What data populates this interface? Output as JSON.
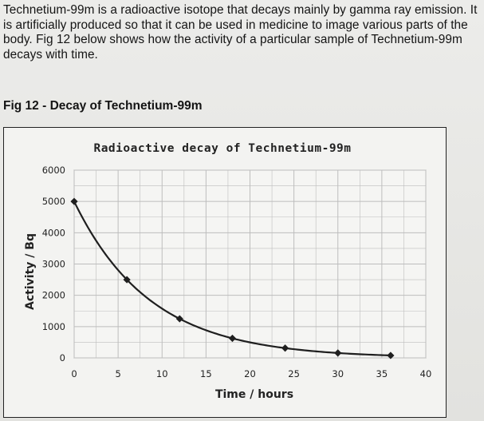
{
  "intro_text": "Technetium-99m is a radioactive isotope that decays mainly by gamma ray emission. It is artificially produced so that it can be used in medicine to image various parts of the body. Fig 12 below shows how the activity of a particular sample of Technetium-99m decays with time.",
  "figure_caption": "Fig 12 - Decay of Technetium-99m",
  "chart_data": {
    "type": "line",
    "title": "Radioactive decay of Technetium-99m",
    "xlabel": "Time / hours",
    "ylabel": "Activity / Bq",
    "xlim": [
      0,
      40
    ],
    "ylim": [
      0,
      6000
    ],
    "x_ticks": [
      "0",
      "5",
      "10",
      "15",
      "20",
      "25",
      "30",
      "35",
      "40"
    ],
    "y_ticks": [
      "0",
      "1000",
      "2000",
      "3000",
      "4000",
      "5000",
      "6000"
    ],
    "grid": true,
    "marker": "diamond",
    "line_color": "#1f1f1f",
    "grid_color": "#bdbdbd",
    "points": [
      {
        "x": 0,
        "y": 5000
      },
      {
        "x": 6,
        "y": 2500
      },
      {
        "x": 12,
        "y": 1250
      },
      {
        "x": 18,
        "y": 625
      },
      {
        "x": 24,
        "y": 313
      },
      {
        "x": 30,
        "y": 156
      },
      {
        "x": 36,
        "y": 78
      }
    ]
  }
}
